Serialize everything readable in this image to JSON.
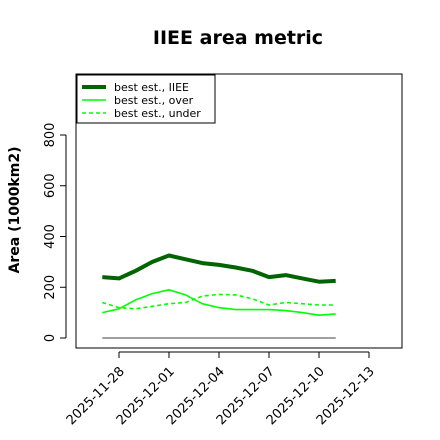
{
  "chart_data": {
    "type": "line",
    "title": "IIEE area metric",
    "xlabel": "",
    "ylabel": "Area (1000km2)",
    "ylim": [
      0,
      800
    ],
    "yticks": [
      0,
      200,
      400,
      600,
      800
    ],
    "xlim": [
      "2025-11-26",
      "2025-12-14"
    ],
    "xticks": [
      "2025-11-28",
      "2025-12-01",
      "2025-12-04",
      "2025-12-07",
      "2025-12-10",
      "2025-12-13"
    ],
    "grid": false,
    "legend_position": "top-left",
    "x": [
      "2025-11-27",
      "2025-11-28",
      "2025-11-29",
      "2025-11-30",
      "2025-12-01",
      "2025-12-02",
      "2025-12-03",
      "2025-12-04",
      "2025-12-05",
      "2025-12-06",
      "2025-12-07",
      "2025-12-08",
      "2025-12-09",
      "2025-12-10",
      "2025-12-11"
    ],
    "series": [
      {
        "name": "best est., IIEE",
        "color": "#006400",
        "style": "solid",
        "width": "thick",
        "values": [
          240,
          235,
          265,
          300,
          325,
          310,
          295,
          288,
          278,
          265,
          240,
          248,
          235,
          222,
          225
        ]
      },
      {
        "name": "best est., over",
        "color": "#00ff00",
        "style": "solid",
        "width": "thin",
        "values": [
          100,
          115,
          150,
          175,
          190,
          170,
          135,
          120,
          112,
          112,
          112,
          108,
          100,
          90,
          95
        ]
      },
      {
        "name": "best est., under",
        "color": "#00ff00",
        "style": "dashed",
        "width": "thin",
        "values": [
          140,
          120,
          115,
          125,
          135,
          140,
          165,
          172,
          170,
          155,
          130,
          140,
          135,
          130,
          130
        ]
      },
      {
        "name": "",
        "color": "#808080",
        "style": "solid",
        "width": "thin",
        "values": [
          0,
          0,
          0,
          0,
          0,
          0,
          0,
          0,
          0,
          0,
          0,
          0,
          0,
          0,
          0
        ]
      }
    ]
  }
}
